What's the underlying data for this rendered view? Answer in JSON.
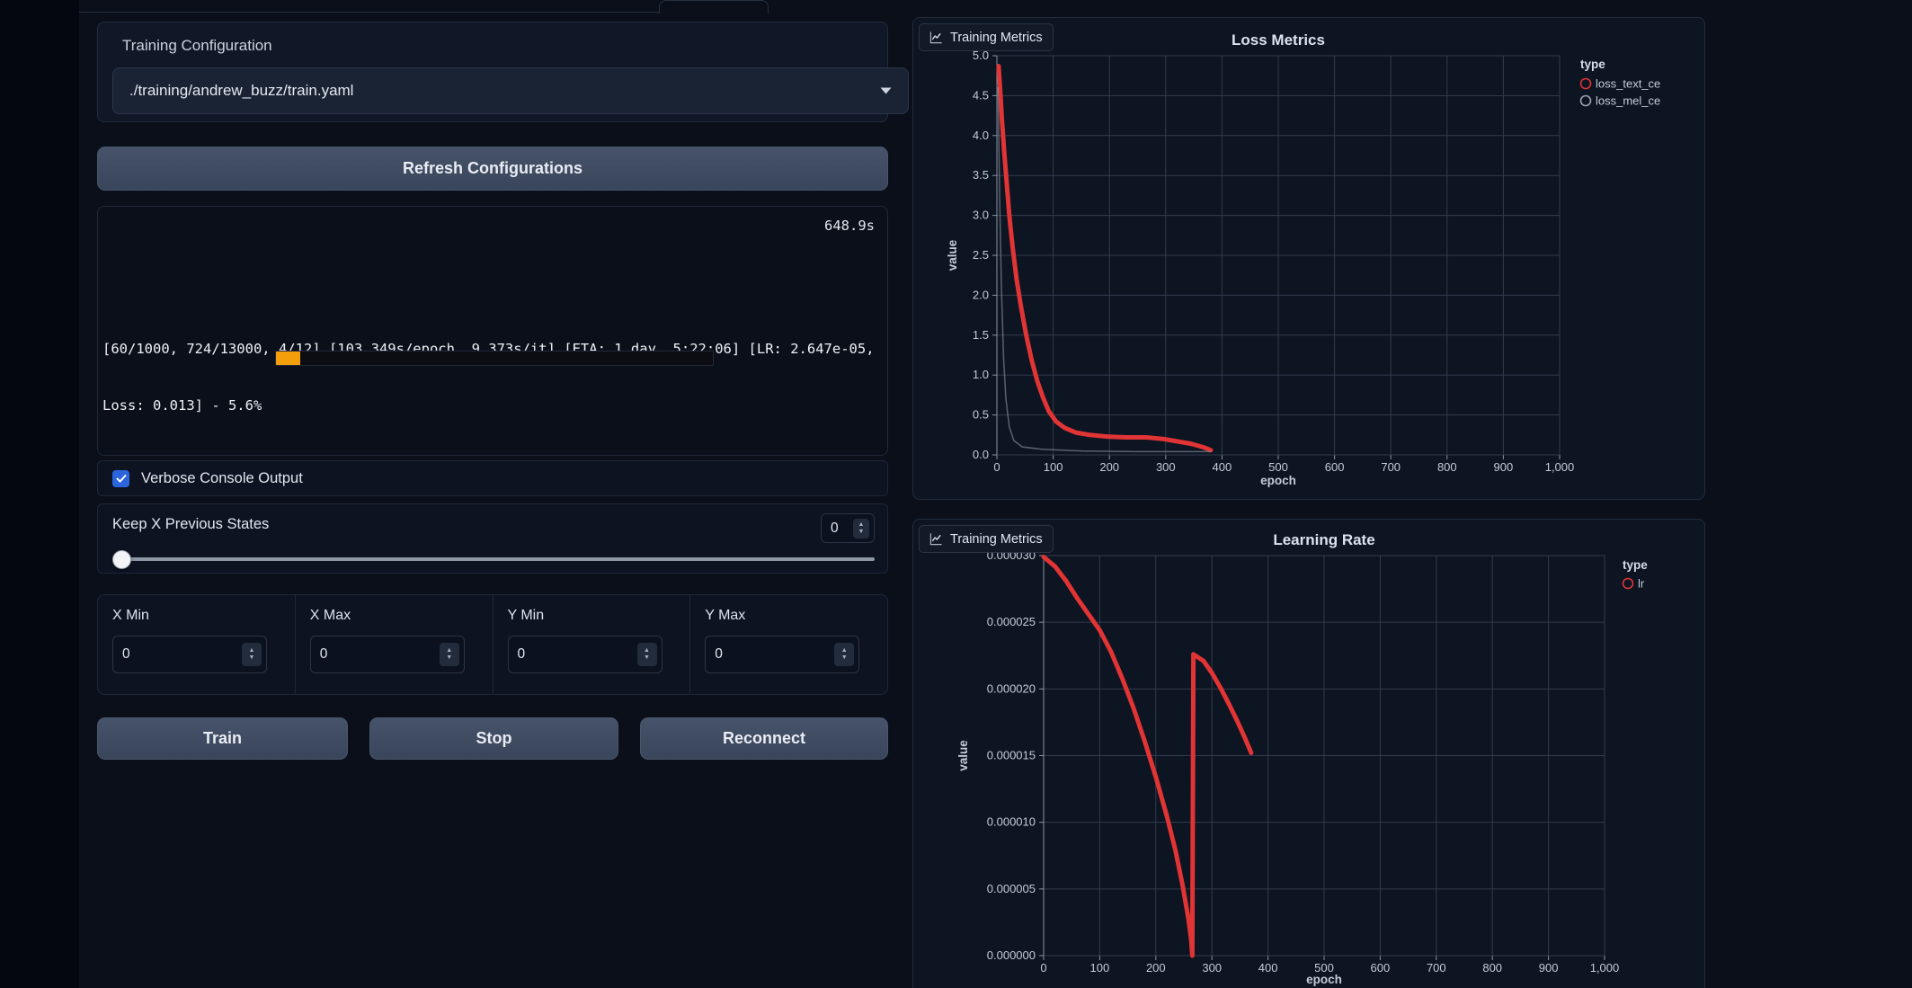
{
  "left_panel": {
    "config_label": "Training Configuration",
    "config_value": "./training/andrew_buzz/train.yaml",
    "refresh_label": "Refresh Configurations",
    "console": {
      "elapsed": "648.9s",
      "log_line1": "[60/1000, 724/13000, 4/12] [103.349s/epoch, 9.373s/it] [ETA: 1 day, 5:22:06] [LR: 2.647e-05,",
      "log_line2": "Loss: 0.013] - 5.6%",
      "progress_percent": 5.6,
      "progress_color": "#f59e0b"
    },
    "verbose_label": "Verbose Console Output",
    "verbose_checked": true,
    "keep_label": "Keep X Previous States",
    "keep_value": "0",
    "limits": [
      {
        "label": "X Min",
        "value": "0"
      },
      {
        "label": "X Max",
        "value": "0"
      },
      {
        "label": "Y Min",
        "value": "0"
      },
      {
        "label": "Y Max",
        "value": "0"
      }
    ],
    "train_label": "Train",
    "stop_label": "Stop",
    "reconnect_label": "Reconnect",
    "accent_blue": "#2b65dd"
  },
  "metrics_panel": {
    "badge_label": "Training Metrics"
  },
  "chart_data": [
    {
      "type": "line",
      "title": "Loss Metrics",
      "xlabel": "epoch",
      "ylabel": "value",
      "xlim": [
        0,
        1000
      ],
      "ylim": [
        0,
        5
      ],
      "grid": true,
      "legend": {
        "title": "type",
        "position": "right"
      },
      "xticks": {
        "values": [
          0,
          100,
          200,
          300,
          400,
          500,
          600,
          700,
          800,
          900,
          1000
        ],
        "labels": [
          "0",
          "100",
          "200",
          "300",
          "400",
          "500",
          "600",
          "700",
          "800",
          "900",
          "1,000"
        ]
      },
      "yticks": {
        "values": [
          0,
          0.5,
          1,
          1.5,
          2,
          2.5,
          3,
          3.5,
          4,
          4.5,
          5
        ],
        "labels": [
          "0.0",
          "0.5",
          "1.0",
          "1.5",
          "2.0",
          "2.5",
          "3.0",
          "3.5",
          "4.0",
          "4.5",
          "5.0"
        ]
      },
      "series": [
        {
          "name": "loss_text_ce",
          "color": "#e13434",
          "stroke_width": 5,
          "opacity": 1,
          "points": [
            [
              3,
              4.87
            ],
            [
              6,
              4.55
            ],
            [
              9,
              4.2
            ],
            [
              13,
              3.8
            ],
            [
              17,
              3.45
            ],
            [
              22,
              3.0
            ],
            [
              28,
              2.6
            ],
            [
              35,
              2.2
            ],
            [
              43,
              1.85
            ],
            [
              52,
              1.5
            ],
            [
              62,
              1.18
            ],
            [
              72,
              0.92
            ],
            [
              82,
              0.72
            ],
            [
              92,
              0.55
            ],
            [
              105,
              0.42
            ],
            [
              120,
              0.34
            ],
            [
              140,
              0.28
            ],
            [
              165,
              0.25
            ],
            [
              195,
              0.23
            ],
            [
              230,
              0.22
            ],
            [
              265,
              0.22
            ],
            [
              295,
              0.2
            ],
            [
              320,
              0.17
            ],
            [
              345,
              0.14
            ],
            [
              365,
              0.1
            ],
            [
              380,
              0.06
            ]
          ]
        },
        {
          "name": "loss_mel_ce",
          "color": "#9aa3ae",
          "stroke_width": 1.5,
          "opacity": 0.55,
          "points": [
            [
              2,
              4.6
            ],
            [
              5,
              3.2
            ],
            [
              8,
              2.1
            ],
            [
              12,
              1.2
            ],
            [
              16,
              0.7
            ],
            [
              22,
              0.35
            ],
            [
              30,
              0.18
            ],
            [
              45,
              0.1
            ],
            [
              80,
              0.07
            ],
            [
              150,
              0.05
            ],
            [
              250,
              0.04
            ],
            [
              380,
              0.04
            ]
          ]
        }
      ]
    },
    {
      "type": "line",
      "title": "Learning Rate",
      "xlabel": "epoch",
      "ylabel": "value",
      "xlim": [
        0,
        1000
      ],
      "ylim": [
        0,
        3e-05
      ],
      "grid": true,
      "legend": {
        "title": "type",
        "position": "right"
      },
      "xticks": {
        "values": [
          0,
          100,
          200,
          300,
          400,
          500,
          600,
          700,
          800,
          900,
          1000
        ],
        "labels": [
          "0",
          "100",
          "200",
          "300",
          "400",
          "500",
          "600",
          "700",
          "800",
          "900",
          "1,000"
        ]
      },
      "yticks": {
        "values": [
          0,
          5e-06,
          1e-05,
          1.5e-05,
          2e-05,
          2.5e-05,
          3e-05
        ],
        "labels": [
          "0.000000",
          "0.000005",
          "0.000010",
          "0.000015",
          "0.000020",
          "0.000025",
          "0.000030"
        ]
      },
      "series": [
        {
          "name": "lr",
          "color": "#e13434",
          "stroke_width": 5,
          "opacity": 1,
          "points": [
            [
              0,
              2.99e-05
            ],
            [
              20,
              2.92e-05
            ],
            [
              40,
              2.81e-05
            ],
            [
              60,
              2.68e-05
            ],
            [
              80,
              2.56e-05
            ],
            [
              100,
              2.44e-05
            ],
            [
              120,
              2.28e-05
            ],
            [
              140,
              2.08e-05
            ],
            [
              160,
              1.86e-05
            ],
            [
              180,
              1.61e-05
            ],
            [
              200,
              1.34e-05
            ],
            [
              220,
              1.04e-05
            ],
            [
              235,
              7.9e-06
            ],
            [
              248,
              5.2e-06
            ],
            [
              258,
              2.8e-06
            ],
            [
              263,
              1.2e-06
            ],
            [
              265,
              0
            ],
            [
              267,
              2.26e-05
            ],
            [
              285,
              2.21e-05
            ],
            [
              300,
              2.12e-05
            ],
            [
              315,
              2.01e-05
            ],
            [
              330,
              1.89e-05
            ],
            [
              345,
              1.76e-05
            ],
            [
              358,
              1.64e-05
            ],
            [
              370,
              1.52e-05
            ]
          ]
        }
      ]
    }
  ]
}
